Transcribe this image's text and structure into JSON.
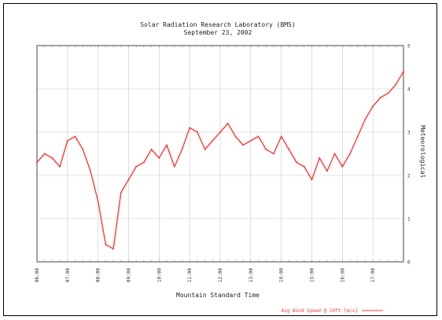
{
  "chart_data": {
    "type": "line",
    "title": "Solar Radiation Research Laboratory (BMS)",
    "subtitle": "September 23, 2002",
    "xlabel": "Mountain Standard Time",
    "ylabel": "Meteorological",
    "x_tick_labels": [
      "06:00",
      "07:00",
      "08:00",
      "09:00",
      "10:00",
      "11:00",
      "12:00",
      "13:00",
      "14:00",
      "15:00",
      "16:00",
      "17:00"
    ],
    "y_tick_labels": [
      "0",
      "1",
      "2",
      "3",
      "4",
      "5"
    ],
    "xlim": [
      6.0,
      18.0
    ],
    "ylim": [
      0,
      5
    ],
    "grid": true,
    "legend_position": "bottom-right",
    "series": [
      {
        "name": "Avg Wind Speed @ 10ft [m/s]",
        "color": "#ff3b3b",
        "x_hours": [
          6.0,
          6.25,
          6.5,
          6.75,
          7.0,
          7.25,
          7.5,
          7.75,
          8.0,
          8.25,
          8.5,
          8.75,
          9.0,
          9.25,
          9.5,
          9.75,
          10.0,
          10.25,
          10.5,
          10.75,
          11.0,
          11.25,
          11.5,
          11.75,
          12.0,
          12.25,
          12.5,
          12.75,
          13.0,
          13.25,
          13.5,
          13.75,
          14.0,
          14.25,
          14.5,
          14.75,
          15.0,
          15.25,
          15.5,
          15.75,
          16.0,
          16.25,
          16.5,
          16.75,
          17.0,
          17.25,
          17.5,
          17.75,
          18.0
        ],
        "values": [
          2.3,
          2.5,
          2.4,
          2.2,
          2.8,
          2.9,
          2.6,
          2.1,
          1.4,
          0.4,
          0.3,
          1.6,
          1.9,
          2.2,
          2.3,
          2.6,
          2.4,
          2.7,
          2.2,
          2.6,
          3.1,
          3.0,
          2.6,
          2.8,
          3.0,
          3.2,
          2.9,
          2.7,
          2.8,
          2.9,
          2.6,
          2.5,
          2.9,
          2.6,
          2.3,
          2.2,
          1.9,
          2.4,
          2.1,
          2.5,
          2.2,
          2.5,
          2.9,
          3.3,
          3.6,
          3.8,
          3.9,
          4.1,
          4.4
        ]
      }
    ]
  }
}
